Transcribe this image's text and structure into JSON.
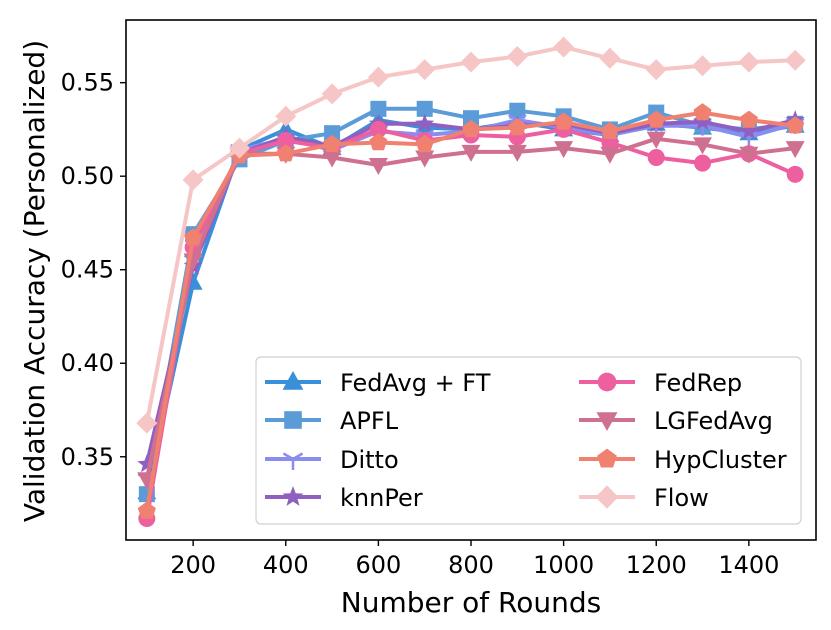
{
  "chart_data": {
    "type": "line",
    "title": "",
    "xlabel": "Number of Rounds",
    "ylabel": "Validation Accuracy (Personalized)",
    "xlim": [
      55,
      1545
    ],
    "ylim": [
      0.3055,
      0.5835
    ],
    "xticks": [
      200,
      400,
      600,
      800,
      1000,
      1200,
      1400
    ],
    "xtick_labels": [
      "200",
      "400",
      "600",
      "800",
      "1000",
      "1200",
      "1400"
    ],
    "yticks": [
      0.35,
      0.4,
      0.45,
      0.5,
      0.55
    ],
    "ytick_labels": [
      "0.35",
      "0.40",
      "0.45",
      "0.50",
      "0.55"
    ],
    "grid": false,
    "legend_position": "lower-right",
    "x": [
      100,
      200,
      300,
      400,
      500,
      600,
      700,
      800,
      900,
      1000,
      1100,
      1200,
      1300,
      1400,
      1500
    ],
    "series": [
      {
        "name": "FedAvg + FT",
        "color": "#3a8fd9",
        "marker": "triangle",
        "values": [
          0.331,
          0.443,
          0.514,
          0.525,
          0.515,
          0.53,
          0.526,
          0.525,
          0.529,
          0.525,
          0.522,
          0.528,
          0.526,
          0.523,
          0.527
        ]
      },
      {
        "name": "APFL",
        "color": "#5a9bd8",
        "marker": "square",
        "values": [
          0.33,
          0.469,
          0.509,
          0.519,
          0.523,
          0.536,
          0.536,
          0.531,
          0.535,
          0.532,
          0.525,
          0.534,
          0.527,
          0.525,
          0.528
        ]
      },
      {
        "name": "Ditto",
        "color": "#8a8cf0",
        "marker": "tri_down",
        "values": [
          0.338,
          0.455,
          0.514,
          0.52,
          0.514,
          0.524,
          0.522,
          0.524,
          0.53,
          0.526,
          0.522,
          0.527,
          0.527,
          0.521,
          0.528
        ]
      },
      {
        "name": "knnPer",
        "color": "#9060c0",
        "marker": "star",
        "values": [
          0.346,
          0.452,
          0.512,
          0.521,
          0.516,
          0.528,
          0.528,
          0.525,
          0.527,
          0.528,
          0.523,
          0.528,
          0.529,
          0.524,
          0.53
        ]
      },
      {
        "name": "FedRep",
        "color": "#ee5fa0",
        "marker": "circle",
        "values": [
          0.317,
          0.462,
          0.512,
          0.519,
          0.515,
          0.525,
          0.519,
          0.522,
          0.521,
          0.525,
          0.518,
          0.51,
          0.507,
          0.512,
          0.501
        ]
      },
      {
        "name": "LGFedAvg",
        "color": "#d07090",
        "marker": "triangle_down",
        "values": [
          0.338,
          0.455,
          0.512,
          0.512,
          0.51,
          0.506,
          0.51,
          0.513,
          0.513,
          0.515,
          0.512,
          0.52,
          0.517,
          0.512,
          0.515
        ]
      },
      {
        "name": "HypCluster",
        "color": "#f08070",
        "marker": "pentagon",
        "values": [
          0.321,
          0.467,
          0.511,
          0.512,
          0.517,
          0.518,
          0.517,
          0.525,
          0.526,
          0.529,
          0.524,
          0.53,
          0.534,
          0.53,
          0.527
        ]
      },
      {
        "name": "Flow",
        "color": "#f6c6c6",
        "marker": "diamond",
        "values": [
          0.368,
          0.498,
          0.515,
          0.532,
          0.544,
          0.553,
          0.557,
          0.561,
          0.564,
          0.569,
          0.563,
          0.557,
          0.559,
          0.561,
          0.562
        ]
      }
    ]
  }
}
